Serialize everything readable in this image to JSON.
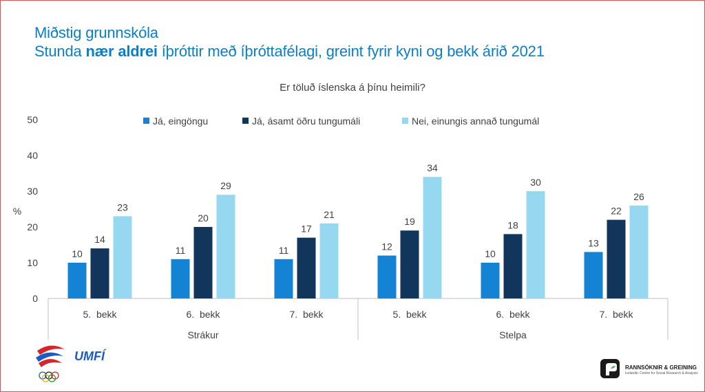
{
  "title": {
    "line1": "Miðstig grunnskóla",
    "line2_prefix": "Stunda ",
    "line2_bold": "nær aldrei",
    "line2_suffix": " íþróttir með íþróttafélagi, greint fyrir kyni og bekk árið 2021"
  },
  "chart_data": {
    "type": "bar",
    "title": "Er töluð íslenska á þínu heimili?",
    "ylabel": "%",
    "ylim": [
      0,
      50
    ],
    "yticks": [
      0,
      10,
      20,
      30,
      40,
      50
    ],
    "grid": false,
    "legend_position": "top",
    "categories": [
      "5.  bekk",
      "6.  bekk",
      "7.  bekk",
      "5.  bekk",
      "6.  bekk",
      "7.  bekk"
    ],
    "groups": [
      {
        "label": "Strákur",
        "categories": [
          "5.  bekk",
          "6.  bekk",
          "7.  bekk"
        ]
      },
      {
        "label": "Stelpa",
        "categories": [
          "5.  bekk",
          "6.  bekk",
          "7.  bekk"
        ]
      }
    ],
    "series": [
      {
        "name": "Já, eingöngu",
        "color": "#1483d4",
        "values": [
          10,
          11,
          11,
          12,
          10,
          13
        ]
      },
      {
        "name": "Já, ásamt öðru tungumáli",
        "color": "#12355b",
        "values": [
          14,
          20,
          17,
          19,
          18,
          22
        ]
      },
      {
        "name": "Nei, einungis annað tungumál",
        "color": "#97d8f1",
        "values": [
          23,
          29,
          21,
          34,
          30,
          26
        ]
      }
    ]
  },
  "logos": {
    "left": "UMFÍ",
    "right_name": "RANNSÓKNIR & GREINING",
    "right_sub": "Icelandic Centre for Social Research & Analysis"
  },
  "colors": {
    "title": "#0a7fc4",
    "axis": "#bfbfbf",
    "text": "#404040"
  }
}
